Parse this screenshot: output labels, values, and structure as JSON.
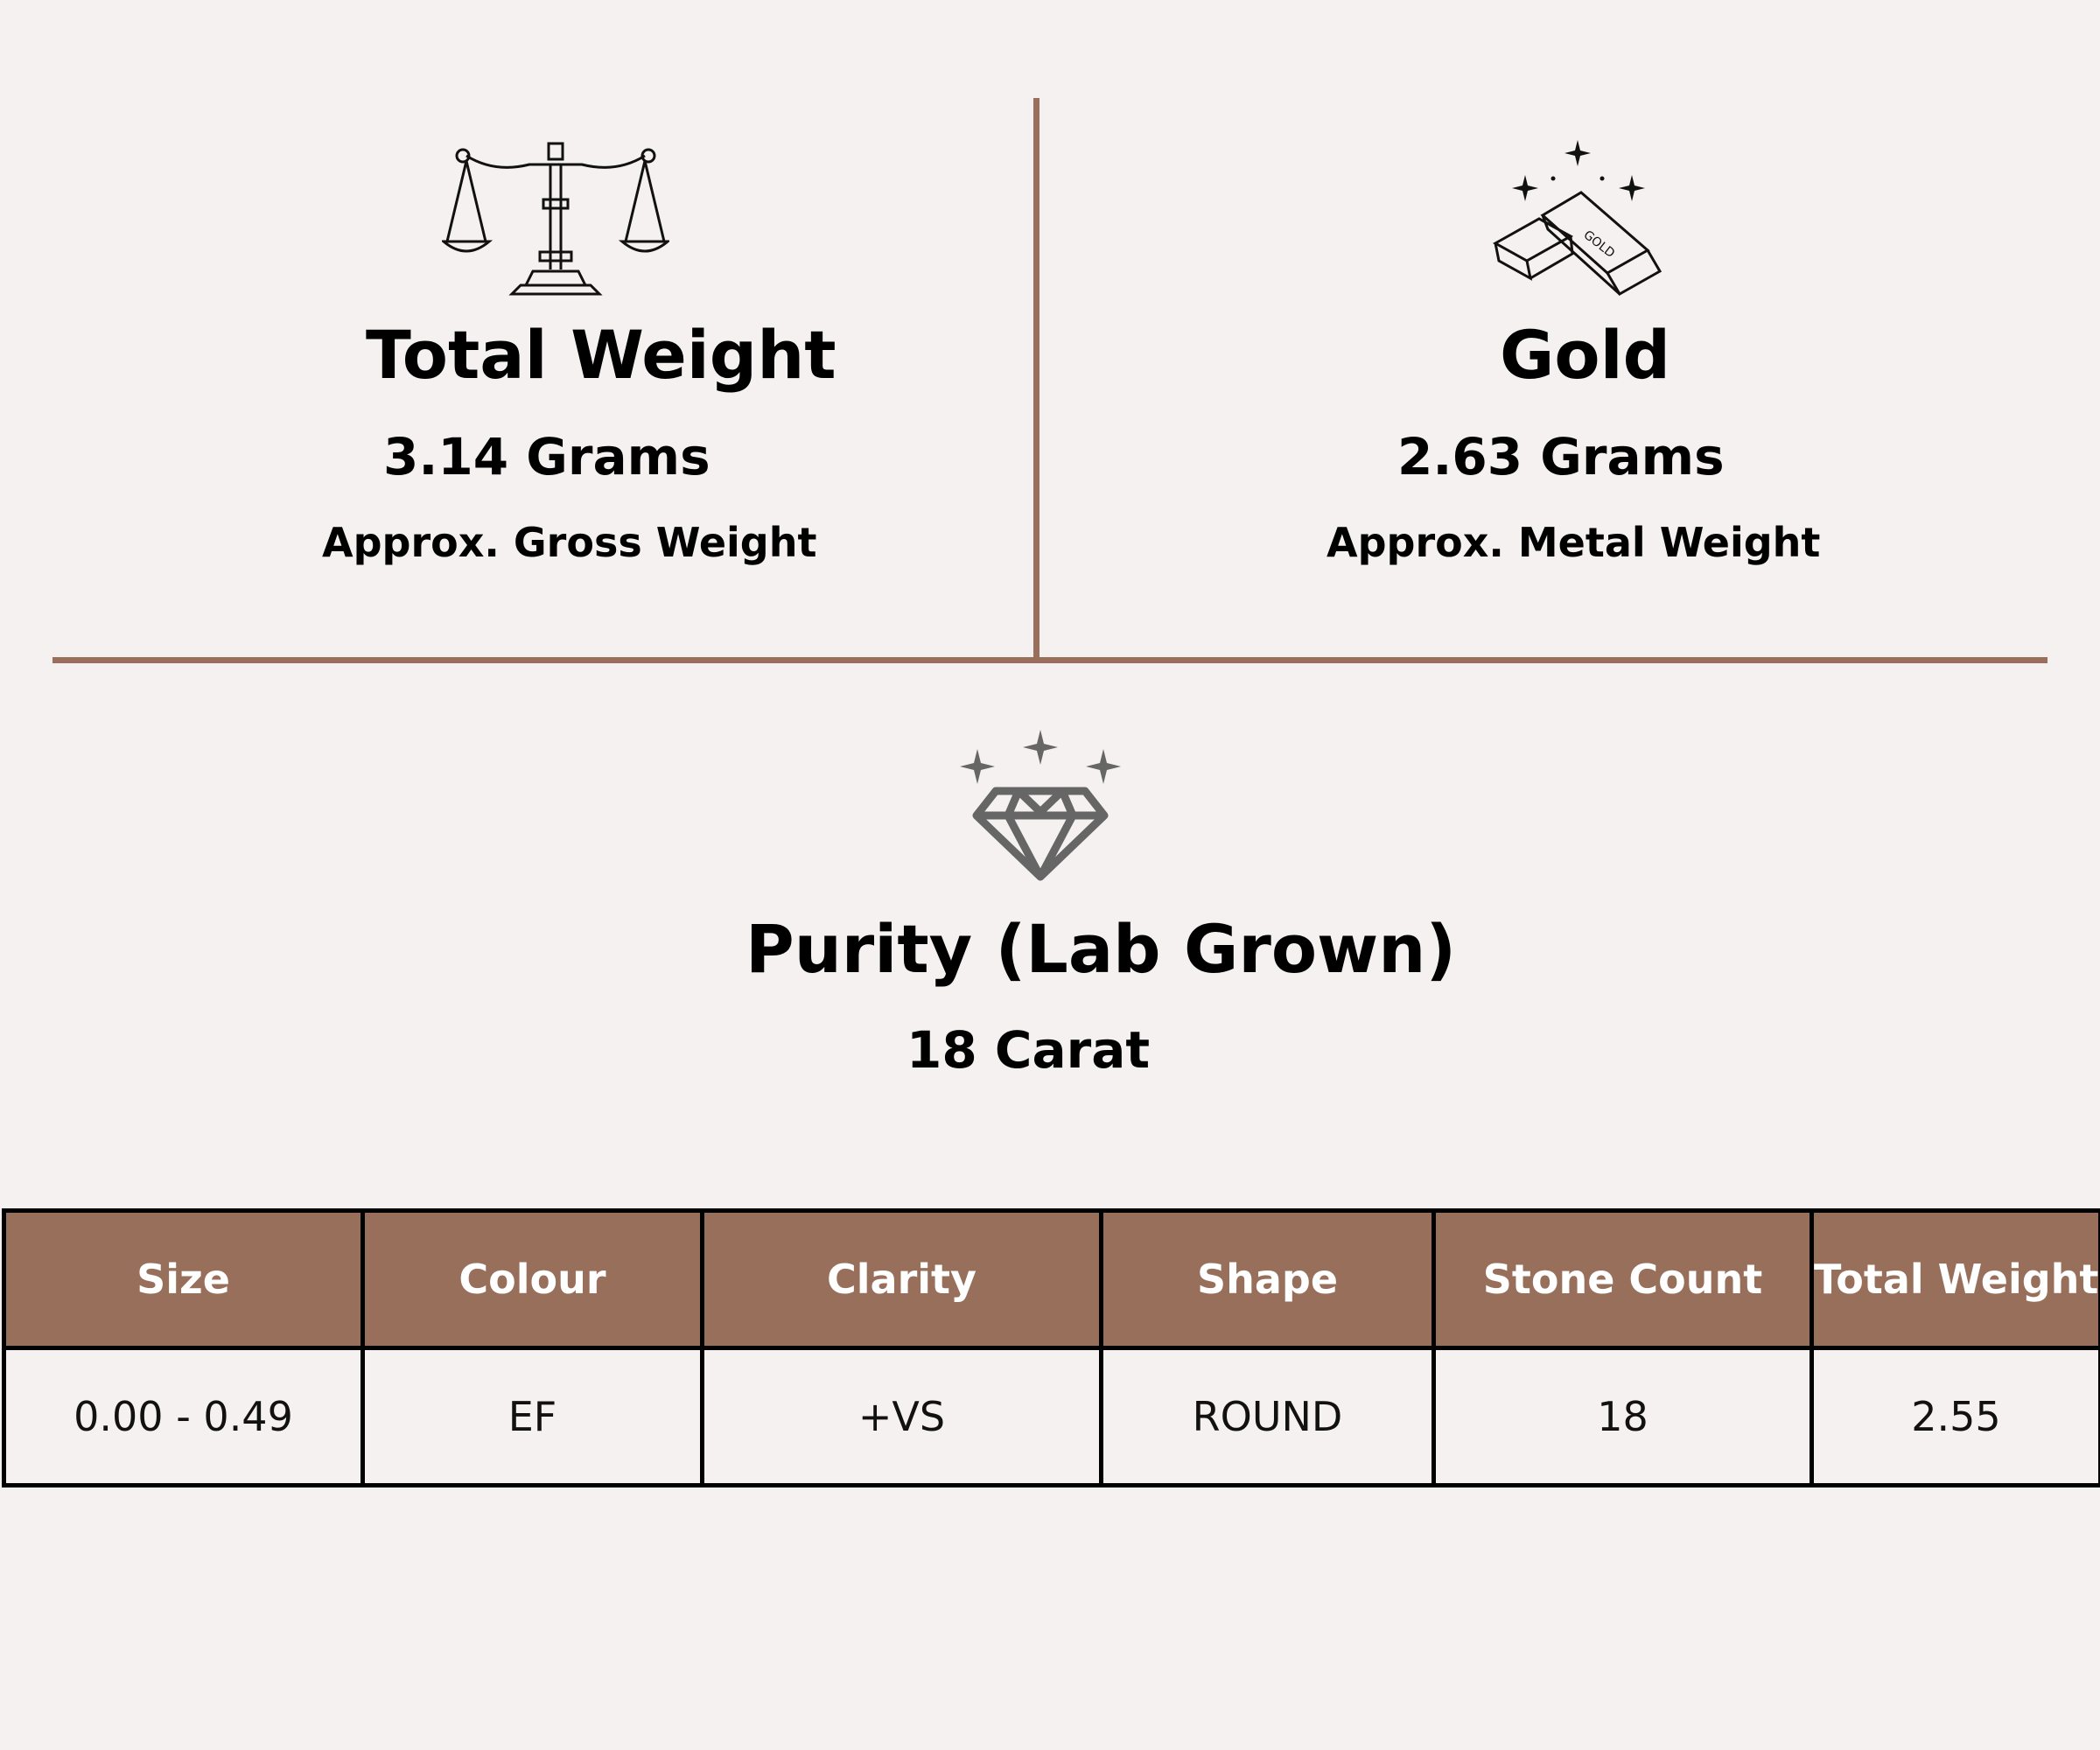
{
  "colors": {
    "background": "#f5f1f0",
    "accent_brown": "#9a705c",
    "header_fill": "#986f5b",
    "header_text": "#ffffff",
    "diamond_icon": "#666666"
  },
  "total_weight": {
    "icon": "balance-scale-icon",
    "title": "Total Weight",
    "value": "3.14 Grams",
    "subtitle": "Approx. Gross Weight"
  },
  "gold": {
    "icon": "gold-bars-icon",
    "title": "Gold",
    "value": "2.63 Grams",
    "subtitle": "Approx. Metal Weight",
    "bar_label": "GOLD"
  },
  "purity": {
    "icon": "diamond-icon",
    "title": "Purity (Lab Grown)",
    "value": "18 Carat"
  },
  "table": {
    "headers": [
      "Size",
      "Colour",
      "Clarity",
      "Shape",
      "Stone Count",
      "Total Weight"
    ],
    "rows": [
      [
        "0.00 - 0.49",
        "EF",
        "+VS",
        "ROUND",
        "18",
        "2.55"
      ]
    ]
  }
}
